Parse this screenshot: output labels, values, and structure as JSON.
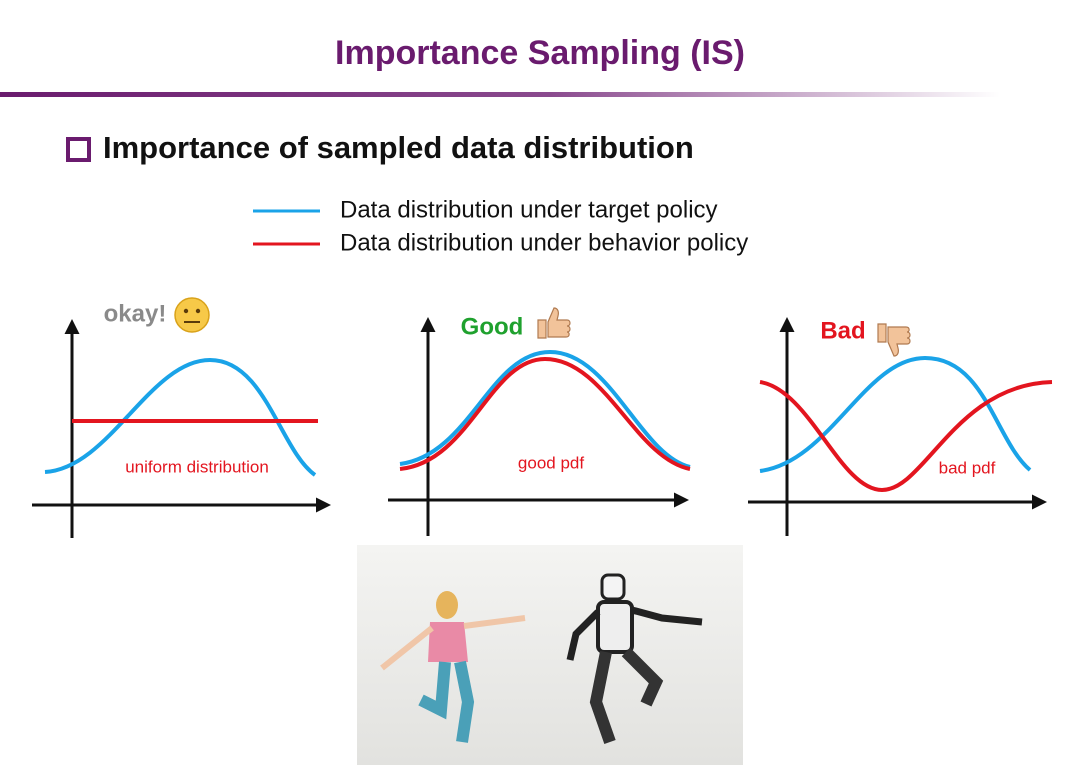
{
  "header": {
    "title": "Importance Sampling (IS)"
  },
  "bullet": "Importance of sampled data distribution",
  "legend": [
    {
      "label": "Data distribution under target policy",
      "color": "#1aa3e8"
    },
    {
      "label": "Data distribution under behavior policy",
      "color": "#e3151f"
    }
  ],
  "panels": [
    {
      "verdict": "okay!",
      "curve_label": "uniform distribution"
    },
    {
      "verdict": "Good",
      "curve_label": "good pdf"
    },
    {
      "verdict": "Bad",
      "curve_label": "bad pdf"
    }
  ]
}
